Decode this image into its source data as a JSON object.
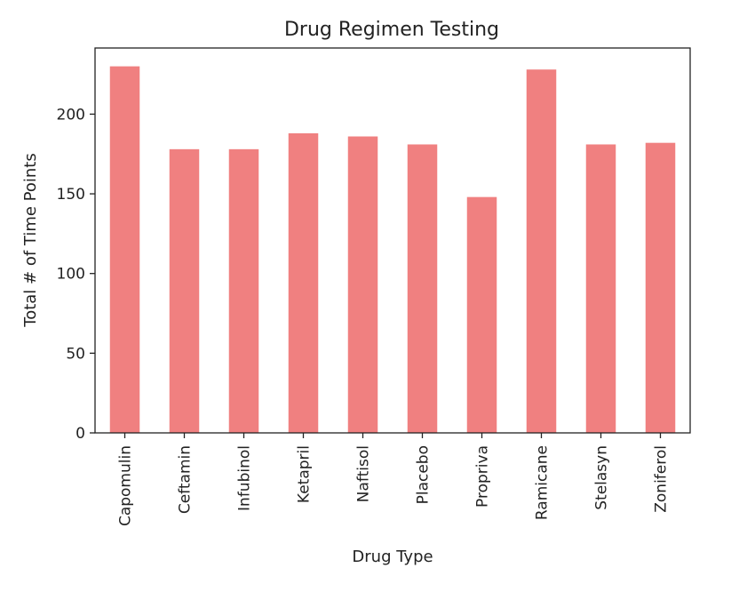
{
  "chart_data": {
    "type": "bar",
    "title": "Drug Regimen Testing",
    "xlabel": "Drug Type",
    "ylabel": "Total # of Time Points",
    "categories": [
      "Capomulin",
      "Ceftamin",
      "Infubinol",
      "Ketapril",
      "Naftisol",
      "Placebo",
      "Propriva",
      "Ramicane",
      "Stelasyn",
      "Zoniferol"
    ],
    "values": [
      230,
      178,
      178,
      188,
      186,
      181,
      148,
      228,
      181,
      182
    ],
    "ylim": [
      0,
      241.5
    ],
    "yticks": [
      0,
      50,
      100,
      150,
      200
    ],
    "bar_color": "#F08080",
    "grid": false,
    "legend": "none"
  }
}
